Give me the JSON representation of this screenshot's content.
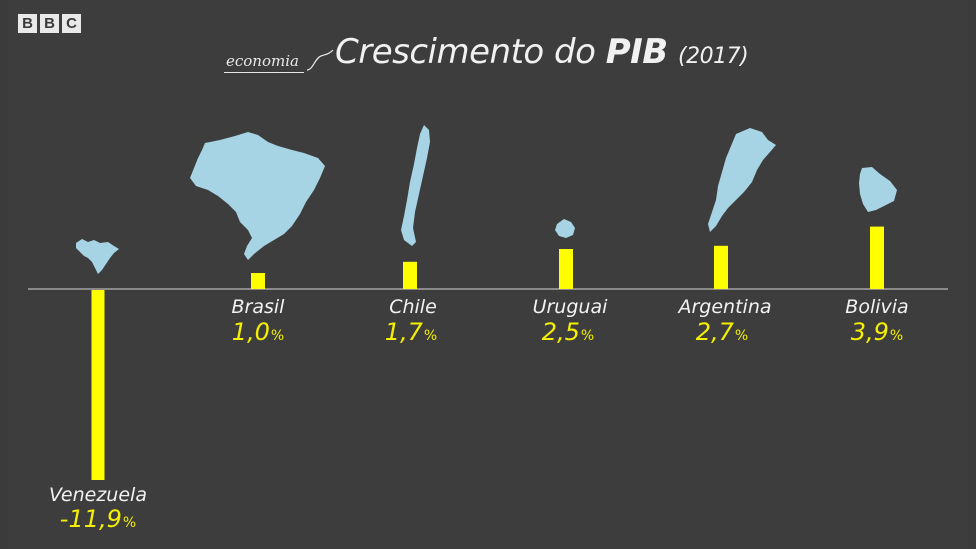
{
  "brand": [
    "B",
    "B",
    "C"
  ],
  "header": {
    "section": "economia",
    "title_main": "Crescimento do",
    "title_bold": "PIB",
    "title_year": "(2017)"
  },
  "colors": {
    "background": "#3d3d3d",
    "bar": "#ffff00",
    "map": "#a7d4e4",
    "baseline": "#d8d8d8"
  },
  "chart_data": {
    "type": "bar",
    "title": "Crescimento do PIB (2017)",
    "categories": [
      "Venezuela",
      "Brasil",
      "Chile",
      "Uruguai",
      "Argentina",
      "Bolivia"
    ],
    "values": [
      -11.9,
      1.0,
      1.7,
      2.5,
      2.7,
      3.9
    ],
    "value_labels": [
      "-11,9",
      "1,0",
      "1,7",
      "2,5",
      "2,7",
      "3,9"
    ],
    "unit": "%",
    "country_icons": [
      "venezuela-map-icon",
      "brazil-map-icon",
      "chile-map-icon",
      "uruguay-map-icon",
      "argentina-map-icon",
      "bolivia-map-icon"
    ]
  }
}
